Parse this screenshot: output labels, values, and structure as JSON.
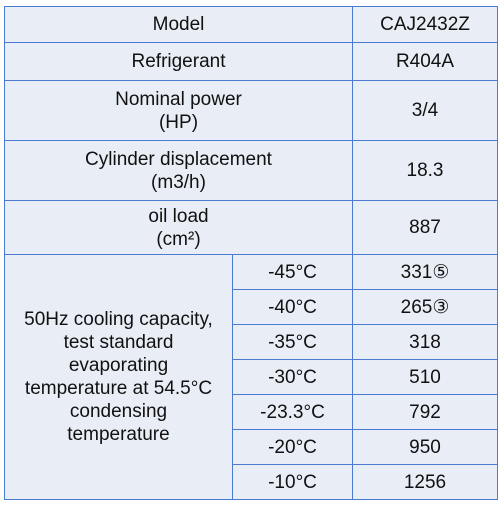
{
  "table": {
    "rows": [
      {
        "label": [
          "Model"
        ],
        "value": "CAJ2432Z"
      },
      {
        "label": [
          "Refrigerant"
        ],
        "value": "R404A"
      },
      {
        "label": [
          "Nominal power",
          "(HP)"
        ],
        "value": "3/4"
      },
      {
        "label": [
          "Cylinder displacement",
          "(m3/h)"
        ],
        "value": "18.3"
      },
      {
        "label": [
          "oil load",
          "(cm²)"
        ],
        "value": "887"
      }
    ],
    "capacity": {
      "label": [
        "50Hz cooling capacity,",
        "test standard",
        "evaporating",
        "temperature at 54.5°C",
        "condensing",
        "temperature"
      ],
      "rows": [
        [
          "-45°C",
          "331⑤"
        ],
        [
          "-40°C",
          "265③"
        ],
        [
          "-35°C",
          "318"
        ],
        [
          "-30°C",
          "510"
        ],
        [
          "-23.3°C",
          "792"
        ],
        [
          "-20°C",
          "950"
        ],
        [
          "-10°C",
          "1256"
        ]
      ]
    }
  }
}
